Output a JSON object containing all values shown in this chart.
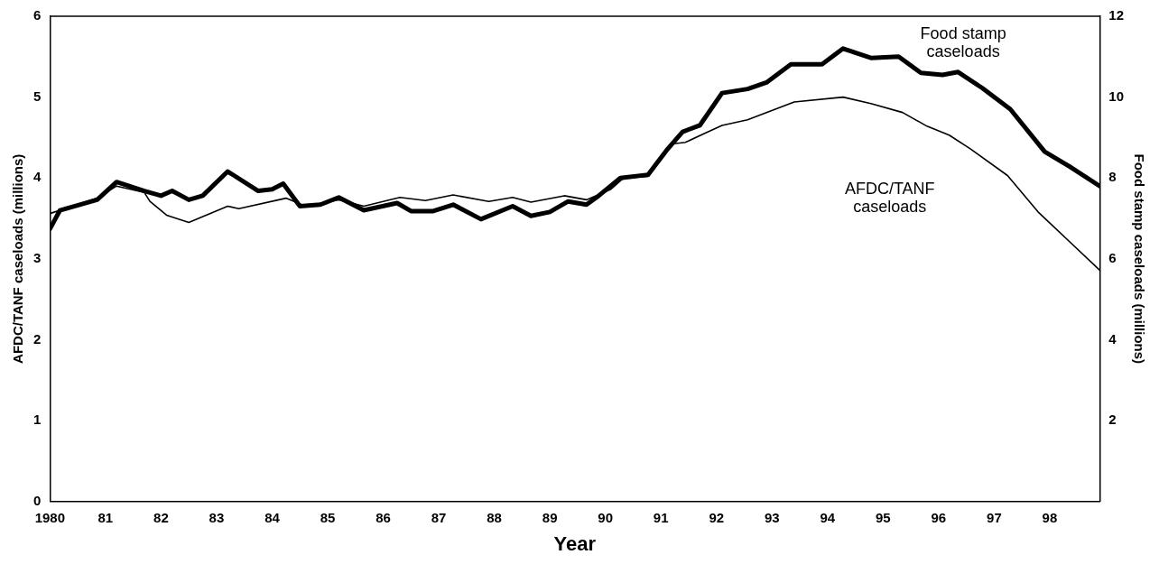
{
  "chart_data": {
    "type": "line",
    "xlabel": "Year",
    "ylabel": "AFDC/TANF caseloads (millions)",
    "y2label": "Food stamp caseloads (millions)",
    "xlim": [
      1980,
      1998.9
    ],
    "xticks": [
      {
        "value": 1980,
        "label": "1980"
      },
      {
        "value": 1981,
        "label": "81"
      },
      {
        "value": 1982,
        "label": "82"
      },
      {
        "value": 1983,
        "label": "83"
      },
      {
        "value": 1984,
        "label": "84"
      },
      {
        "value": 1985,
        "label": "85"
      },
      {
        "value": 1986,
        "label": "86"
      },
      {
        "value": 1987,
        "label": "87"
      },
      {
        "value": 1988,
        "label": "88"
      },
      {
        "value": 1989,
        "label": "89"
      },
      {
        "value": 1990,
        "label": "90"
      },
      {
        "value": 1991,
        "label": "91"
      },
      {
        "value": 1992,
        "label": "92"
      },
      {
        "value": 1993,
        "label": "93"
      },
      {
        "value": 1994,
        "label": "94"
      },
      {
        "value": 1995,
        "label": "95"
      },
      {
        "value": 1996,
        "label": "96"
      },
      {
        "value": 1997,
        "label": "97"
      },
      {
        "value": 1998,
        "label": "98"
      }
    ],
    "ylim": [
      0,
      6
    ],
    "yticks": [
      0,
      1,
      2,
      3,
      4,
      5,
      6
    ],
    "y2lim": [
      0,
      12
    ],
    "y2ticks": [
      2,
      4,
      6,
      8,
      10,
      12
    ],
    "grid": false,
    "legend": false,
    "marker": "none",
    "line_style": "solid",
    "series": [
      {
        "name": "AFDC/TANF caseloads",
        "color": "#000000",
        "x": [
          1980.0,
          1980.85,
          1981.2,
          1981.7,
          1981.8,
          1982.1,
          1982.5,
          1983.2,
          1983.4,
          1984.25,
          1984.6,
          1985.2,
          1985.65,
          1986.3,
          1986.76,
          1987.26,
          1987.9,
          1988.33,
          1988.66,
          1989.26,
          1989.66,
          1990.1,
          1990.33,
          1990.77,
          1991.2,
          1991.44,
          1991.78,
          1992.1,
          1992.56,
          1993.4,
          1994.28,
          1994.78,
          1995.35,
          1995.79,
          1996.19,
          1996.57,
          1997.24,
          1997.79,
          1998.36,
          1998.9
        ],
        "values": [
          3.56,
          3.75,
          3.9,
          3.82,
          3.71,
          3.54,
          3.45,
          3.65,
          3.62,
          3.75,
          3.65,
          3.73,
          3.65,
          3.76,
          3.72,
          3.79,
          3.71,
          3.76,
          3.7,
          3.78,
          3.73,
          3.86,
          4.0,
          4.02,
          4.42,
          4.44,
          4.55,
          4.65,
          4.72,
          4.94,
          5.0,
          4.92,
          4.81,
          4.64,
          4.53,
          4.36,
          4.03,
          3.58,
          3.21,
          2.86
        ]
      },
      {
        "name": "Food stamp caseloads",
        "color": "#000000",
        "axis": "y2",
        "x": [
          1980.0,
          1980.18,
          1980.85,
          1981.2,
          1981.7,
          1982.0,
          1982.2,
          1982.5,
          1982.75,
          1983.2,
          1983.75,
          1984.0,
          1984.2,
          1984.5,
          1984.87,
          1985.2,
          1985.65,
          1986.25,
          1986.5,
          1986.9,
          1987.26,
          1987.76,
          1988.33,
          1988.66,
          1989.0,
          1989.33,
          1989.66,
          1989.88,
          1990.27,
          1990.77,
          1991.1,
          1991.39,
          1991.7,
          1992.1,
          1992.56,
          1992.9,
          1993.34,
          1993.9,
          1994.28,
          1994.78,
          1995.28,
          1995.68,
          1996.07,
          1996.35,
          1996.79,
          1997.29,
          1997.91,
          1998.36,
          1998.9
        ],
        "values": [
          6.74,
          7.2,
          7.46,
          7.9,
          7.68,
          7.56,
          7.68,
          7.46,
          7.56,
          8.16,
          7.68,
          7.72,
          7.86,
          7.3,
          7.34,
          7.52,
          7.2,
          7.38,
          7.18,
          7.18,
          7.34,
          6.98,
          7.3,
          7.06,
          7.16,
          7.42,
          7.34,
          7.56,
          8.0,
          8.08,
          8.68,
          9.14,
          9.3,
          10.1,
          10.2,
          10.36,
          10.81,
          10.81,
          11.2,
          10.97,
          11.0,
          10.6,
          10.55,
          10.62,
          10.22,
          9.7,
          8.65,
          8.28,
          7.8
        ]
      }
    ]
  }
}
